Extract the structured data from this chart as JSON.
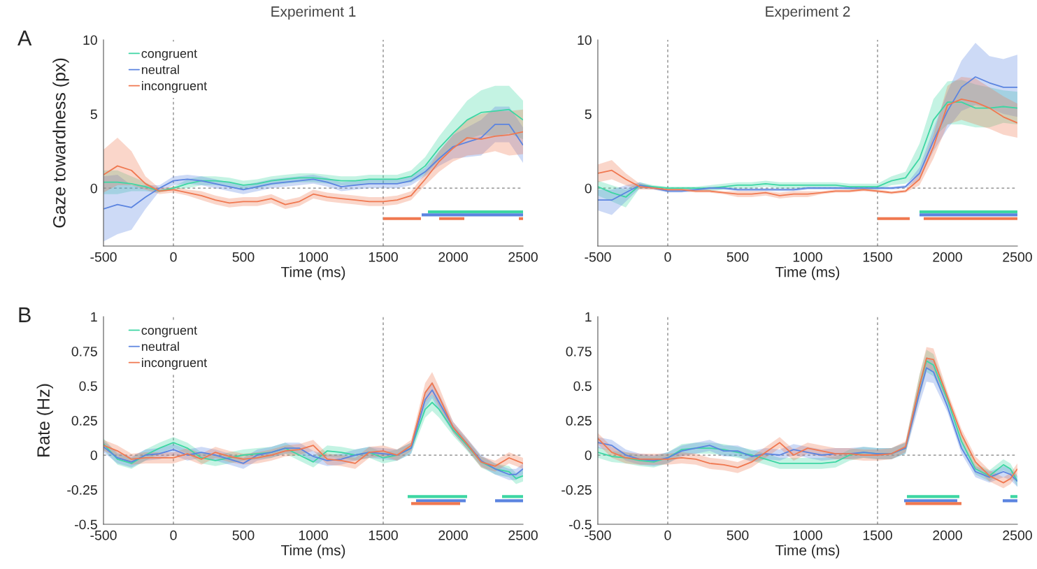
{
  "chart_data": [
    {
      "type": "line",
      "title": "Experiment 1",
      "xlabel": "Time (ms)",
      "ylabel": "Gaze towardness (px)",
      "annotations": [
        "A"
      ],
      "legend": "top left",
      "x": [
        -500,
        -400,
        -300,
        -200,
        -100,
        0,
        100,
        200,
        300,
        400,
        500,
        600,
        700,
        800,
        900,
        1000,
        1100,
        1200,
        1300,
        1400,
        1500,
        1600,
        1700,
        1800,
        1900,
        2000,
        2100,
        2200,
        2300,
        2400,
        2500
      ],
      "xlim": [
        -500,
        2500
      ],
      "xticks": [
        -500,
        0,
        500,
        1000,
        1500,
        2000,
        2500
      ],
      "ylim": [
        -3.9,
        10
      ],
      "yticks": [
        0,
        5,
        10
      ],
      "grid": false,
      "ref_lines": [
        {
          "axis": "x",
          "value": 0,
          "line_style": "dashed",
          "color": "#808080"
        },
        {
          "axis": "x",
          "value": 1500,
          "line_style": "dashed",
          "color": "#808080"
        },
        {
          "axis": "y",
          "value": 0,
          "line_style": "dashed",
          "color": "#808080"
        }
      ],
      "series": [
        {
          "name": "congruent",
          "color": "#3dd6a3",
          "values": [
            0.4,
            0.4,
            0.3,
            0.1,
            -0.2,
            0.0,
            0.3,
            0.5,
            0.5,
            0.4,
            0.2,
            0.3,
            0.5,
            0.6,
            0.7,
            0.7,
            0.6,
            0.5,
            0.5,
            0.6,
            0.6,
            0.6,
            0.8,
            1.5,
            2.7,
            3.7,
            4.6,
            5.1,
            5.2,
            5.3,
            4.6
          ],
          "upper": [
            1.2,
            1.2,
            0.8,
            0.4,
            -0.1,
            0.1,
            0.6,
            0.8,
            0.8,
            0.7,
            0.5,
            0.6,
            0.8,
            0.9,
            1.0,
            1.0,
            0.9,
            0.8,
            0.8,
            0.9,
            0.9,
            0.9,
            1.2,
            2.1,
            3.5,
            4.7,
            5.9,
            6.6,
            6.9,
            6.9,
            5.9
          ],
          "lower": [
            -0.4,
            -0.4,
            -0.2,
            -0.2,
            -0.3,
            -0.1,
            0.0,
            0.2,
            0.2,
            0.1,
            -0.1,
            0.0,
            0.2,
            0.3,
            0.4,
            0.4,
            0.3,
            0.2,
            0.2,
            0.3,
            0.3,
            0.3,
            0.4,
            0.9,
            1.9,
            2.7,
            3.3,
            3.6,
            3.5,
            3.7,
            3.3
          ]
        },
        {
          "name": "neutral",
          "color": "#5b84e0",
          "values": [
            -1.4,
            -1.1,
            -1.3,
            -0.6,
            0.0,
            0.5,
            0.6,
            0.5,
            0.3,
            0.1,
            -0.1,
            0.1,
            0.3,
            0.4,
            0.5,
            0.6,
            0.4,
            0.1,
            0.2,
            0.3,
            0.3,
            0.3,
            0.5,
            1.1,
            2.0,
            2.8,
            3.1,
            3.4,
            4.3,
            4.3,
            2.9
          ],
          "upper": [
            0.8,
            0.9,
            0.2,
            0.2,
            0.2,
            0.8,
            0.9,
            0.8,
            0.6,
            0.4,
            0.2,
            0.4,
            0.6,
            0.7,
            0.8,
            0.9,
            0.7,
            0.4,
            0.5,
            0.6,
            0.6,
            0.6,
            0.8,
            1.4,
            2.5,
            3.6,
            4.1,
            4.6,
            5.5,
            5.5,
            4.1
          ],
          "lower": [
            -3.6,
            -3.1,
            -2.8,
            -1.4,
            -0.2,
            0.2,
            0.3,
            0.2,
            0.0,
            -0.2,
            -0.4,
            -0.2,
            0.0,
            0.1,
            0.2,
            0.3,
            0.1,
            -0.2,
            -0.1,
            0.0,
            0.0,
            0.0,
            0.2,
            0.8,
            1.5,
            2.0,
            2.1,
            2.2,
            3.1,
            3.1,
            1.7
          ]
        },
        {
          "name": "incongruent",
          "color": "#f07850",
          "values": [
            0.9,
            1.5,
            1.2,
            0.3,
            -0.2,
            -0.1,
            -0.3,
            -0.5,
            -0.8,
            -1.0,
            -0.9,
            -0.9,
            -0.7,
            -1.1,
            -0.9,
            -0.4,
            -0.6,
            -0.7,
            -0.8,
            -0.9,
            -0.9,
            -0.8,
            -0.5,
            0.6,
            1.8,
            2.7,
            3.4,
            3.3,
            3.5,
            3.6,
            3.8
          ],
          "upper": [
            2.6,
            3.4,
            2.5,
            0.8,
            0.0,
            0.1,
            -0.1,
            -0.2,
            -0.5,
            -0.7,
            -0.6,
            -0.6,
            -0.4,
            -0.8,
            -0.6,
            -0.1,
            -0.3,
            -0.4,
            -0.5,
            -0.6,
            -0.6,
            -0.5,
            -0.2,
            1.0,
            2.5,
            3.6,
            4.6,
            5.0,
            5.2,
            5.2,
            5.3
          ],
          "lower": [
            -0.3,
            0.2,
            0.2,
            -0.1,
            -0.4,
            -0.3,
            -0.5,
            -0.8,
            -1.1,
            -1.3,
            -1.2,
            -1.2,
            -1.0,
            -1.4,
            -1.2,
            -0.7,
            -0.9,
            -1.0,
            -1.1,
            -1.2,
            -1.2,
            -1.1,
            -0.8,
            0.2,
            1.1,
            1.8,
            2.2,
            2.3,
            2.5,
            2.2,
            2.3
          ]
        },
        {
          "color": "#3dd6a3",
          "x": [
            1820,
            2500
          ],
          "values": [
            -1.6,
            -1.6
          ]
        },
        {
          "color": "#5b84e0",
          "x": [
            1775,
            2500
          ],
          "values": [
            -1.8,
            -1.8
          ]
        },
        {
          "color": "#f07850",
          "x": [
            1500,
            1770,
            1835,
            1900,
            2080,
            2275,
            2470,
            2500
          ],
          "values": [
            -2.05,
            -2.05,
            null,
            -2.05,
            -2.05,
            null,
            -2.05,
            -2.05
          ]
        }
      ]
    },
    {
      "type": "line",
      "title": "Experiment 2",
      "xlabel": "Time (ms)",
      "x": [
        -500,
        -400,
        -300,
        -200,
        -100,
        0,
        100,
        200,
        300,
        400,
        500,
        600,
        700,
        800,
        900,
        1000,
        1100,
        1200,
        1300,
        1400,
        1500,
        1600,
        1700,
        1800,
        1900,
        2000,
        2100,
        2200,
        2300,
        2400,
        2500
      ],
      "xlim": [
        -500,
        2500
      ],
      "xticks": [
        -500,
        0,
        500,
        1000,
        1500,
        2000,
        2500
      ],
      "ylim": [
        -3.9,
        10
      ],
      "yticks": [
        0,
        5,
        10
      ],
      "grid": false,
      "ref_lines": [
        {
          "axis": "x",
          "value": 0,
          "line_style": "dashed",
          "color": "#808080"
        },
        {
          "axis": "x",
          "value": 1500,
          "line_style": "dashed",
          "color": "#808080"
        },
        {
          "axis": "y",
          "value": 0,
          "line_style": "dashed",
          "color": "#808080"
        }
      ],
      "series": [
        {
          "color": "#3dd6a3",
          "values": [
            0.1,
            -0.3,
            -0.6,
            0.2,
            0.1,
            0.0,
            0.0,
            0.0,
            0.0,
            0.1,
            0.2,
            0.2,
            0.3,
            0.2,
            0.2,
            0.2,
            0.2,
            0.2,
            0.1,
            0.1,
            0.1,
            0.5,
            0.7,
            2.0,
            4.6,
            5.8,
            5.8,
            5.4,
            5.4,
            5.5,
            5.4
          ],
          "upper": [
            0.5,
            0.2,
            -0.1,
            0.4,
            0.2,
            0.1,
            0.1,
            0.1,
            0.2,
            0.3,
            0.4,
            0.4,
            0.5,
            0.4,
            0.4,
            0.4,
            0.4,
            0.4,
            0.3,
            0.3,
            0.3,
            0.8,
            1.1,
            3.0,
            6.0,
            7.2,
            7.3,
            7.0,
            6.8,
            6.6,
            6.5
          ],
          "lower": [
            -0.5,
            -0.9,
            -1.3,
            0.0,
            0.0,
            -0.1,
            -0.1,
            -0.1,
            -0.2,
            -0.1,
            0.0,
            0.0,
            0.1,
            0.0,
            0.0,
            0.0,
            0.0,
            0.0,
            -0.1,
            -0.1,
            -0.1,
            0.2,
            0.3,
            1.0,
            3.4,
            4.3,
            4.3,
            4.1,
            4.1,
            4.4,
            4.3
          ]
        },
        {
          "color": "#5b84e0",
          "values": [
            -0.8,
            -0.8,
            -0.3,
            0.2,
            0.0,
            -0.2,
            -0.2,
            -0.1,
            0.0,
            0.0,
            -0.1,
            -0.1,
            -0.1,
            -0.1,
            -0.1,
            0.0,
            0.0,
            0.0,
            0.0,
            0.0,
            0.0,
            0.0,
            0.1,
            1.0,
            3.2,
            5.2,
            6.8,
            7.5,
            7.1,
            6.8,
            6.8
          ],
          "upper": [
            -0.1,
            -0.1,
            0.2,
            0.4,
            0.1,
            -0.1,
            -0.1,
            0.0,
            0.1,
            0.1,
            0.0,
            0.0,
            0.0,
            0.0,
            0.0,
            0.1,
            0.1,
            0.1,
            0.1,
            0.1,
            0.1,
            0.1,
            0.2,
            1.4,
            4.0,
            6.5,
            8.6,
            9.8,
            8.9,
            8.7,
            9.0
          ],
          "lower": [
            -1.5,
            -1.8,
            -0.9,
            0.0,
            -0.1,
            -0.3,
            -0.3,
            -0.2,
            -0.1,
            -0.1,
            -0.2,
            -0.2,
            -0.2,
            -0.2,
            -0.2,
            -0.1,
            -0.1,
            -0.1,
            -0.1,
            -0.1,
            -0.1,
            -0.1,
            0.0,
            0.6,
            2.5,
            4.0,
            5.2,
            5.6,
            5.4,
            5.0,
            4.8
          ]
        },
        {
          "color": "#f07850",
          "values": [
            1.0,
            1.2,
            0.6,
            0.1,
            0.0,
            -0.1,
            -0.1,
            -0.2,
            -0.2,
            -0.3,
            -0.4,
            -0.4,
            -0.3,
            -0.5,
            -0.4,
            -0.4,
            -0.3,
            -0.2,
            -0.2,
            -0.1,
            -0.2,
            -0.3,
            -0.2,
            0.6,
            2.8,
            5.6,
            6.0,
            5.8,
            5.4,
            4.8,
            4.4
          ],
          "upper": [
            1.6,
            1.9,
            1.0,
            0.3,
            0.1,
            0.0,
            0.0,
            -0.1,
            -0.1,
            -0.2,
            -0.2,
            -0.2,
            -0.2,
            -0.3,
            -0.2,
            -0.2,
            -0.2,
            -0.1,
            -0.1,
            0.0,
            -0.1,
            -0.2,
            -0.1,
            1.0,
            3.6,
            6.9,
            7.5,
            7.4,
            6.8,
            6.2,
            5.7
          ],
          "lower": [
            0.4,
            0.6,
            0.2,
            -0.1,
            -0.1,
            -0.2,
            -0.2,
            -0.3,
            -0.3,
            -0.4,
            -0.6,
            -0.6,
            -0.5,
            -0.7,
            -0.6,
            -0.6,
            -0.4,
            -0.3,
            -0.3,
            -0.2,
            -0.3,
            -0.4,
            -0.3,
            0.2,
            2.0,
            4.3,
            4.6,
            4.3,
            4.0,
            3.6,
            3.4
          ]
        },
        {
          "color": "#3dd6a3",
          "x": [
            1800,
            2500
          ],
          "values": [
            -1.6,
            -1.6
          ]
        },
        {
          "color": "#5b84e0",
          "x": [
            1800,
            2500
          ],
          "values": [
            -1.8,
            -1.8
          ]
        },
        {
          "color": "#f07850",
          "x": [
            1500,
            1730,
            1780,
            1830,
            2500
          ],
          "values": [
            -2.05,
            -2.05,
            null,
            -2.05,
            -2.05
          ]
        }
      ]
    },
    {
      "type": "line",
      "xlabel": "Time (ms)",
      "ylabel": "Rate (Hz)",
      "annotations": [
        "B"
      ],
      "legend": "top left",
      "x": [
        -500,
        -400,
        -300,
        -200,
        -100,
        0,
        100,
        200,
        300,
        400,
        500,
        600,
        700,
        800,
        900,
        1000,
        1100,
        1200,
        1300,
        1400,
        1500,
        1600,
        1700,
        1800,
        1850,
        1900,
        2000,
        2100,
        2200,
        2300,
        2400,
        2450,
        2500
      ],
      "xlim": [
        -500,
        2500
      ],
      "xticks": [
        -500,
        0,
        500,
        1000,
        1500,
        2000,
        2500
      ],
      "ylim": [
        -0.5,
        1
      ],
      "yticks": [
        -0.5,
        -0.25,
        0,
        0.25,
        0.5,
        0.75,
        1
      ],
      "grid": false,
      "ref_lines": [
        {
          "axis": "x",
          "value": 0,
          "line_style": "dashed",
          "color": "#808080"
        },
        {
          "axis": "x",
          "value": 1500,
          "line_style": "dashed",
          "color": "#808080"
        },
        {
          "axis": "y",
          "value": 0,
          "line_style": "dashed",
          "color": "#808080"
        }
      ],
      "series": [
        {
          "name": "congruent",
          "color": "#3dd6a3",
          "values": [
            0.08,
            -0.03,
            -0.06,
            0.0,
            0.05,
            0.09,
            0.05,
            -0.02,
            -0.04,
            -0.02,
            0.0,
            0.01,
            0.02,
            0.05,
            0.0,
            -0.05,
            0.03,
            0.02,
            0.0,
            0.02,
            -0.02,
            0.0,
            0.05,
            0.33,
            0.38,
            0.33,
            0.18,
            0.07,
            -0.05,
            -0.1,
            -0.12,
            -0.17,
            -0.15
          ],
          "upper": [
            0.12,
            0.01,
            -0.02,
            0.04,
            0.09,
            0.13,
            0.09,
            0.02,
            0.0,
            0.02,
            0.04,
            0.05,
            0.06,
            0.09,
            0.04,
            -0.01,
            0.07,
            0.06,
            0.04,
            0.06,
            0.02,
            0.04,
            0.09,
            0.39,
            0.44,
            0.39,
            0.22,
            0.11,
            -0.01,
            -0.06,
            -0.08,
            -0.13,
            -0.11
          ],
          "lower": [
            0.04,
            -0.07,
            -0.1,
            -0.04,
            0.01,
            0.05,
            0.01,
            -0.06,
            -0.08,
            -0.06,
            -0.04,
            -0.03,
            -0.02,
            0.01,
            -0.04,
            -0.09,
            -0.01,
            -0.02,
            -0.04,
            -0.02,
            -0.06,
            -0.04,
            0.01,
            0.27,
            0.32,
            0.27,
            0.14,
            0.03,
            -0.09,
            -0.14,
            -0.16,
            -0.21,
            -0.19
          ]
        },
        {
          "name": "neutral",
          "color": "#5b84e0",
          "values": [
            0.06,
            -0.02,
            -0.05,
            0.0,
            0.01,
            0.04,
            0.0,
            0.02,
            0.0,
            -0.03,
            -0.06,
            0.0,
            0.02,
            0.05,
            0.05,
            -0.01,
            -0.04,
            -0.03,
            0.0,
            0.02,
            0.01,
            0.0,
            0.05,
            0.4,
            0.47,
            0.38,
            0.2,
            0.08,
            -0.04,
            -0.1,
            -0.14,
            -0.14,
            -0.1
          ],
          "upper": [
            0.1,
            0.02,
            -0.01,
            0.04,
            0.05,
            0.08,
            0.04,
            0.06,
            0.04,
            0.01,
            -0.02,
            0.04,
            0.06,
            0.09,
            0.09,
            0.03,
            0.0,
            0.01,
            0.04,
            0.06,
            0.05,
            0.04,
            0.09,
            0.46,
            0.53,
            0.44,
            0.24,
            0.12,
            0.0,
            -0.06,
            -0.1,
            -0.1,
            -0.06
          ],
          "lower": [
            0.02,
            -0.06,
            -0.09,
            -0.04,
            -0.03,
            0.0,
            -0.04,
            -0.02,
            -0.04,
            -0.07,
            -0.1,
            -0.04,
            -0.02,
            0.01,
            0.01,
            -0.05,
            -0.08,
            -0.07,
            -0.04,
            -0.02,
            -0.03,
            -0.04,
            0.01,
            0.34,
            0.41,
            0.32,
            0.16,
            0.04,
            -0.08,
            -0.14,
            -0.18,
            -0.18,
            -0.14
          ]
        },
        {
          "name": "incongruent",
          "color": "#f07850",
          "values": [
            0.07,
            0.03,
            -0.03,
            -0.02,
            -0.02,
            -0.02,
            0.01,
            -0.03,
            0.02,
            -0.01,
            -0.03,
            -0.02,
            0.0,
            0.03,
            0.04,
            0.07,
            -0.03,
            -0.04,
            -0.06,
            0.02,
            0.03,
            0.0,
            0.07,
            0.45,
            0.52,
            0.42,
            0.2,
            0.08,
            -0.05,
            -0.08,
            -0.02,
            -0.04,
            -0.06
          ],
          "upper": [
            0.11,
            0.07,
            0.01,
            0.02,
            0.02,
            0.02,
            0.05,
            0.01,
            0.06,
            0.03,
            0.01,
            0.02,
            0.04,
            0.07,
            0.08,
            0.11,
            0.01,
            0.0,
            -0.02,
            0.06,
            0.07,
            0.04,
            0.11,
            0.52,
            0.6,
            0.49,
            0.24,
            0.12,
            -0.01,
            -0.04,
            0.02,
            0.0,
            -0.02
          ],
          "lower": [
            0.03,
            -0.01,
            -0.07,
            -0.06,
            -0.06,
            -0.06,
            -0.03,
            -0.07,
            -0.02,
            -0.05,
            -0.07,
            -0.06,
            -0.04,
            -0.01,
            0.0,
            0.03,
            -0.07,
            -0.08,
            -0.1,
            -0.02,
            -0.01,
            -0.04,
            0.03,
            0.38,
            0.44,
            0.35,
            0.16,
            0.04,
            -0.09,
            -0.12,
            -0.06,
            -0.08,
            -0.1
          ]
        },
        {
          "color": "#3dd6a3",
          "x": [
            1675,
            2100,
            2225,
            2350,
            2500
          ],
          "values": [
            -0.3,
            -0.3,
            null,
            -0.3,
            -0.3
          ]
        },
        {
          "color": "#5b84e0",
          "x": [
            1735,
            2090,
            2195,
            2300,
            2500
          ],
          "values": [
            -0.33,
            -0.33,
            null,
            -0.33,
            -0.33
          ]
        },
        {
          "color": "#f07850",
          "x": [
            1700,
            2050
          ],
          "values": [
            -0.35,
            -0.35
          ]
        }
      ]
    },
    {
      "type": "line",
      "xlabel": "Time (ms)",
      "x": [
        -500,
        -400,
        -300,
        -200,
        -100,
        0,
        100,
        200,
        300,
        400,
        500,
        600,
        700,
        800,
        900,
        1000,
        1100,
        1200,
        1300,
        1400,
        1500,
        1600,
        1700,
        1800,
        1850,
        1900,
        2000,
        2100,
        2200,
        2300,
        2400,
        2450,
        2500
      ],
      "xlim": [
        -500,
        2500
      ],
      "xticks": [
        -500,
        0,
        500,
        1000,
        1500,
        2000,
        2500
      ],
      "ylim": [
        -0.5,
        1
      ],
      "yticks": [
        -0.5,
        -0.25,
        0,
        0.25,
        0.5,
        0.75,
        1
      ],
      "grid": false,
      "ref_lines": [
        {
          "axis": "x",
          "value": 0,
          "line_style": "dashed",
          "color": "#808080"
        },
        {
          "axis": "x",
          "value": 1500,
          "line_style": "dashed",
          "color": "#808080"
        },
        {
          "axis": "y",
          "value": 0,
          "line_style": "dashed",
          "color": "#808080"
        }
      ],
      "series": [
        {
          "color": "#3dd6a3",
          "values": [
            0.02,
            -0.01,
            -0.02,
            -0.04,
            -0.05,
            -0.02,
            0.04,
            0.05,
            0.05,
            0.04,
            0.02,
            0.0,
            -0.03,
            -0.06,
            -0.06,
            -0.06,
            -0.06,
            -0.05,
            0.0,
            0.02,
            0.01,
            0.01,
            0.05,
            0.5,
            0.68,
            0.65,
            0.4,
            0.1,
            -0.1,
            -0.15,
            -0.07,
            -0.1,
            -0.19
          ],
          "upper": [
            0.06,
            0.03,
            0.02,
            0.0,
            -0.01,
            0.02,
            0.08,
            0.09,
            0.09,
            0.08,
            0.06,
            0.04,
            0.01,
            -0.02,
            -0.02,
            -0.02,
            -0.02,
            -0.01,
            0.04,
            0.06,
            0.05,
            0.05,
            0.09,
            0.58,
            0.76,
            0.73,
            0.44,
            0.14,
            -0.06,
            -0.11,
            -0.03,
            -0.06,
            -0.15
          ],
          "lower": [
            -0.02,
            -0.05,
            -0.06,
            -0.08,
            -0.09,
            -0.06,
            0.0,
            0.01,
            0.01,
            0.0,
            -0.02,
            -0.04,
            -0.07,
            -0.1,
            -0.1,
            -0.1,
            -0.1,
            -0.09,
            -0.04,
            -0.02,
            -0.03,
            -0.03,
            0.01,
            0.42,
            0.6,
            0.57,
            0.36,
            0.06,
            -0.14,
            -0.19,
            -0.11,
            -0.14,
            -0.23
          ]
        },
        {
          "color": "#5b84e0",
          "values": [
            0.09,
            0.07,
            0.0,
            -0.03,
            -0.04,
            -0.02,
            0.03,
            0.05,
            0.07,
            0.03,
            0.03,
            -0.01,
            0.01,
            0.0,
            0.04,
            0.02,
            0.0,
            0.01,
            0.01,
            0.02,
            0.01,
            0.01,
            0.05,
            0.45,
            0.63,
            0.6,
            0.35,
            0.05,
            -0.12,
            -0.16,
            -0.12,
            -0.14,
            -0.19
          ],
          "upper": [
            0.13,
            0.11,
            0.04,
            0.01,
            0.0,
            0.02,
            0.07,
            0.09,
            0.11,
            0.07,
            0.07,
            0.03,
            0.05,
            0.04,
            0.08,
            0.06,
            0.04,
            0.05,
            0.05,
            0.06,
            0.05,
            0.05,
            0.09,
            0.53,
            0.71,
            0.68,
            0.39,
            0.09,
            -0.08,
            -0.12,
            -0.08,
            -0.1,
            -0.15
          ],
          "lower": [
            0.05,
            0.03,
            -0.04,
            -0.07,
            -0.08,
            -0.06,
            -0.01,
            0.01,
            0.03,
            -0.01,
            -0.01,
            -0.05,
            -0.03,
            -0.04,
            0.0,
            -0.02,
            -0.04,
            -0.03,
            -0.03,
            -0.02,
            -0.03,
            -0.03,
            0.01,
            0.37,
            0.53,
            0.52,
            0.31,
            0.01,
            -0.16,
            -0.2,
            -0.16,
            -0.18,
            -0.23
          ]
        },
        {
          "color": "#f07850",
          "values": [
            0.12,
            0.02,
            -0.02,
            -0.03,
            -0.03,
            -0.03,
            -0.02,
            -0.03,
            -0.06,
            -0.07,
            -0.09,
            -0.05,
            0.02,
            0.09,
            0.0,
            0.05,
            0.03,
            0.01,
            0.01,
            0.0,
            0.0,
            0.01,
            0.06,
            0.5,
            0.7,
            0.69,
            0.42,
            0.15,
            -0.05,
            -0.15,
            -0.2,
            -0.17,
            -0.1
          ],
          "upper": [
            0.16,
            0.06,
            0.02,
            0.01,
            0.01,
            0.01,
            0.02,
            0.01,
            -0.02,
            -0.03,
            -0.05,
            -0.01,
            0.06,
            0.13,
            0.04,
            0.09,
            0.07,
            0.05,
            0.05,
            0.04,
            0.04,
            0.05,
            0.1,
            0.58,
            0.78,
            0.77,
            0.46,
            0.19,
            -0.01,
            -0.11,
            -0.16,
            -0.13,
            -0.06
          ],
          "lower": [
            0.08,
            -0.02,
            -0.06,
            -0.07,
            -0.07,
            -0.07,
            -0.06,
            -0.07,
            -0.1,
            -0.11,
            -0.13,
            -0.09,
            -0.02,
            0.05,
            -0.04,
            0.01,
            -0.01,
            -0.03,
            -0.03,
            -0.04,
            -0.04,
            -0.03,
            0.02,
            0.42,
            0.62,
            0.61,
            0.38,
            0.11,
            -0.09,
            -0.19,
            -0.24,
            -0.21,
            -0.14
          ]
        },
        {
          "color": "#3dd6a3",
          "x": [
            1710,
            2085,
            2270,
            2450,
            2500
          ],
          "values": [
            -0.3,
            -0.3,
            null,
            -0.3,
            -0.3
          ]
        },
        {
          "color": "#5b84e0",
          "x": [
            1690,
            2070,
            2230,
            2395,
            2500
          ],
          "values": [
            -0.33,
            -0.33,
            null,
            -0.33,
            -0.33
          ]
        },
        {
          "color": "#f07850",
          "x": [
            1700,
            2100
          ],
          "values": [
            -0.35,
            -0.35
          ]
        }
      ]
    }
  ]
}
